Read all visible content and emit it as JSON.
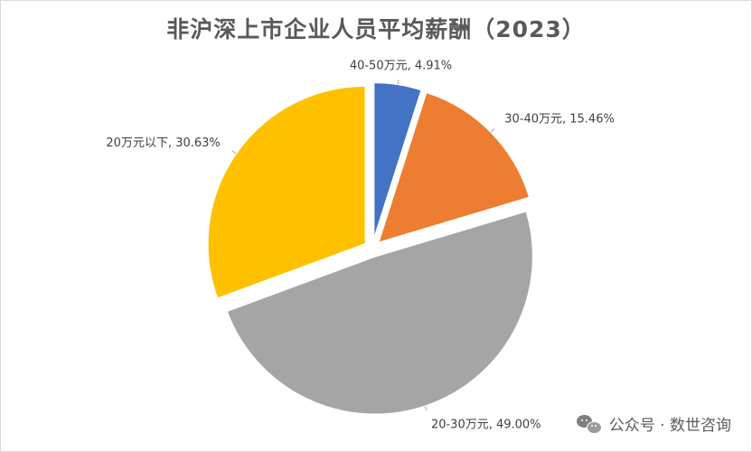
{
  "chart_data": {
    "type": "pie",
    "title": "非沪深上市企业人员平均薪酬（2023）",
    "start_angle_deg": 0,
    "direction": "clockwise",
    "exploded": true,
    "slices": [
      {
        "label": "40-50万元",
        "value": 4.91,
        "display": "40-50万元, 4.91%",
        "color": "#4472c4"
      },
      {
        "label": "30-40万元",
        "value": 15.46,
        "display": "30-40万元, 15.46%",
        "color": "#ed7d31"
      },
      {
        "label": "20-30万元",
        "value": 49.0,
        "display": "20-30万元, 49.00%",
        "color": "#a5a5a5"
      },
      {
        "label": "20万元以下",
        "value": 30.63,
        "display": "20万元以下, 30.63%",
        "color": "#ffc000"
      }
    ]
  },
  "watermark": {
    "icon": "wechat-icon",
    "text": "公众号 · 数世咨询"
  }
}
